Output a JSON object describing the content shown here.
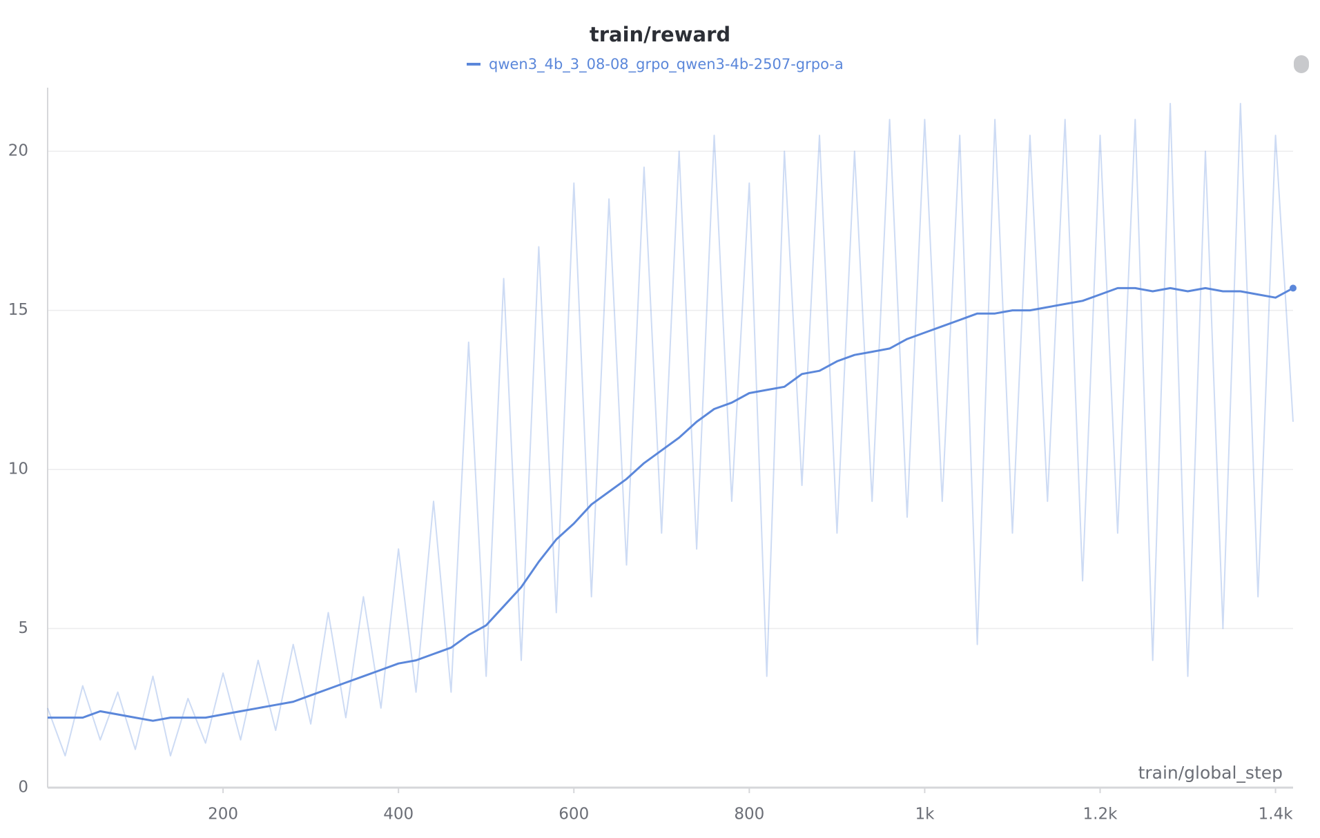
{
  "chart_data": {
    "type": "line",
    "title": "train/reward",
    "xlabel": "train/global_step",
    "x": [
      0,
      20,
      40,
      60,
      80,
      100,
      120,
      140,
      160,
      180,
      200,
      220,
      240,
      260,
      280,
      300,
      320,
      340,
      360,
      380,
      400,
      420,
      440,
      460,
      480,
      500,
      520,
      540,
      560,
      580,
      600,
      620,
      640,
      660,
      680,
      700,
      720,
      740,
      760,
      780,
      800,
      820,
      840,
      860,
      880,
      900,
      920,
      940,
      960,
      980,
      1000,
      1020,
      1040,
      1060,
      1080,
      1100,
      1120,
      1140,
      1160,
      1180,
      1200,
      1220,
      1240,
      1260,
      1280,
      1300,
      1320,
      1340,
      1360,
      1380,
      1400,
      1420
    ],
    "series": [
      {
        "color": "#5b87da",
        "opacity": 0.3,
        "values": [
          2.5,
          1.0,
          3.2,
          1.5,
          3.0,
          1.2,
          3.5,
          1.0,
          2.8,
          1.4,
          3.6,
          1.5,
          4.0,
          1.8,
          4.5,
          2.0,
          5.5,
          2.2,
          6.0,
          2.5,
          7.5,
          3.0,
          9.0,
          3.0,
          14.0,
          3.5,
          16.0,
          4.0,
          17.0,
          5.5,
          19.0,
          6.0,
          18.5,
          7.0,
          19.5,
          8.0,
          20.0,
          7.5,
          20.5,
          9.0,
          19.0,
          3.5,
          20.0,
          9.5,
          20.5,
          8.0,
          20.0,
          9.0,
          21.0,
          8.5,
          21.0,
          9.0,
          20.5,
          4.5,
          21.0,
          8.0,
          20.5,
          9.0,
          21.0,
          6.5,
          20.5,
          8.0,
          21.0,
          4.0,
          21.5,
          3.5,
          20.0,
          5.0,
          21.5,
          6.0,
          20.5,
          11.5
        ]
      },
      {
        "name": "qwen3_4b_3_08-08_grpo_qwen3-4b-2507-grpo-a",
        "color": "#5b87da",
        "opacity": 1,
        "values": [
          2.2,
          2.2,
          2.2,
          2.4,
          2.3,
          2.2,
          2.1,
          2.2,
          2.2,
          2.2,
          2.3,
          2.4,
          2.5,
          2.6,
          2.7,
          2.9,
          3.1,
          3.3,
          3.5,
          3.7,
          3.9,
          4.0,
          4.2,
          4.4,
          4.8,
          5.1,
          5.7,
          6.3,
          7.1,
          7.8,
          8.3,
          8.9,
          9.3,
          9.7,
          10.2,
          10.6,
          11.0,
          11.5,
          11.9,
          12.1,
          12.4,
          12.5,
          12.6,
          13.0,
          13.1,
          13.4,
          13.6,
          13.7,
          13.8,
          14.1,
          14.3,
          14.5,
          14.7,
          14.9,
          14.9,
          15.0,
          15.0,
          15.1,
          15.2,
          15.3,
          15.5,
          15.7,
          15.7,
          15.6,
          15.7,
          15.6,
          15.7,
          15.6,
          15.6,
          15.5,
          15.4,
          15.7
        ]
      }
    ],
    "xlim": [
      0,
      1420
    ],
    "ylim": [
      0,
      22
    ],
    "xticks": [
      200,
      400,
      600,
      800,
      {
        "value": 1000,
        "label": "1k"
      },
      {
        "value": 1200,
        "label": "1.2k"
      },
      {
        "value": 1400,
        "label": "1.4k"
      }
    ],
    "yticks": [
      0,
      5,
      10,
      15,
      20
    ],
    "grid": true
  }
}
